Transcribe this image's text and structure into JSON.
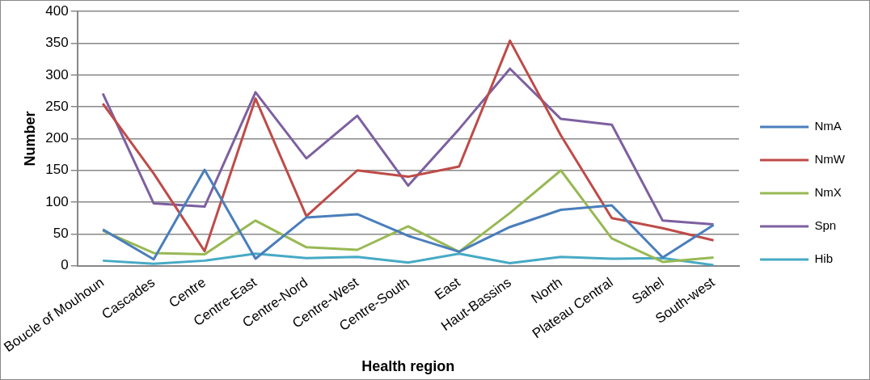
{
  "chart_data": {
    "type": "line",
    "xlabel": "Health region",
    "ylabel": "Number",
    "categories": [
      "Boucle of Mouhoun",
      "Cascades",
      "Centre",
      "Centre-East",
      "Centre-Nord",
      "Centre-West",
      "Centre-South",
      "East",
      "Haut-Bassins",
      "North",
      "Plateau Central",
      "Sahel",
      "South-west"
    ],
    "series": [
      {
        "name": "NmA",
        "color": "#4a7ebb",
        "values": [
          57,
          10,
          151,
          11,
          76,
          81,
          47,
          22,
          61,
          88,
          95,
          13,
          64
        ]
      },
      {
        "name": "NmW",
        "color": "#be4b48",
        "values": [
          255,
          145,
          23,
          263,
          78,
          150,
          140,
          156,
          354,
          205,
          75,
          59,
          40
        ]
      },
      {
        "name": "NmX",
        "color": "#98b954",
        "values": [
          55,
          20,
          18,
          71,
          29,
          25,
          62,
          22,
          83,
          150,
          43,
          6,
          13
        ]
      },
      {
        "name": "Spn",
        "color": "#7d60a0",
        "values": [
          271,
          98,
          93,
          273,
          169,
          236,
          126,
          215,
          310,
          231,
          222,
          71,
          65
        ]
      },
      {
        "name": "Hib",
        "color": "#46aac5",
        "values": [
          8,
          3,
          8,
          19,
          12,
          14,
          5,
          19,
          4,
          14,
          11,
          12,
          1
        ]
      }
    ],
    "ylim": [
      0,
      400
    ],
    "yticks": [
      0,
      50,
      100,
      150,
      200,
      250,
      300,
      350,
      400
    ],
    "grid": "y",
    "legend": "right",
    "marker": "none",
    "line_style": "solid"
  }
}
